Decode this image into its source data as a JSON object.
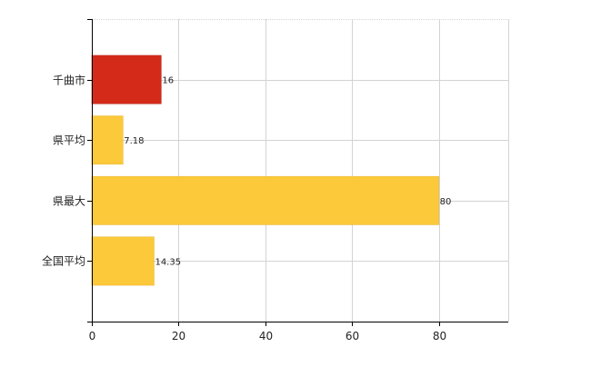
{
  "colors": {
    "highlight": "#d42a1a",
    "highlight_stroke": "#b31f12",
    "normal": "#fcc93b",
    "normal_stroke": "#e6b22b",
    "grid": "#d3d3d3",
    "axis": "#000000"
  },
  "chart_data": {
    "type": "bar",
    "orientation": "horizontal",
    "categories": [
      "千曲市",
      "県平均",
      "県最大",
      "全国平均"
    ],
    "values": [
      16,
      7.18,
      80,
      14.35
    ],
    "value_labels": [
      "16",
      "7.18",
      "80",
      "14.35"
    ],
    "highlight_index": 0,
    "xlim": [
      0,
      96
    ],
    "xticks": [
      0,
      20,
      40,
      60,
      80
    ],
    "xtick_labels": [
      "0",
      "20",
      "40",
      "60",
      "80"
    ],
    "grid": true,
    "title": "",
    "xlabel": "",
    "ylabel": ""
  }
}
